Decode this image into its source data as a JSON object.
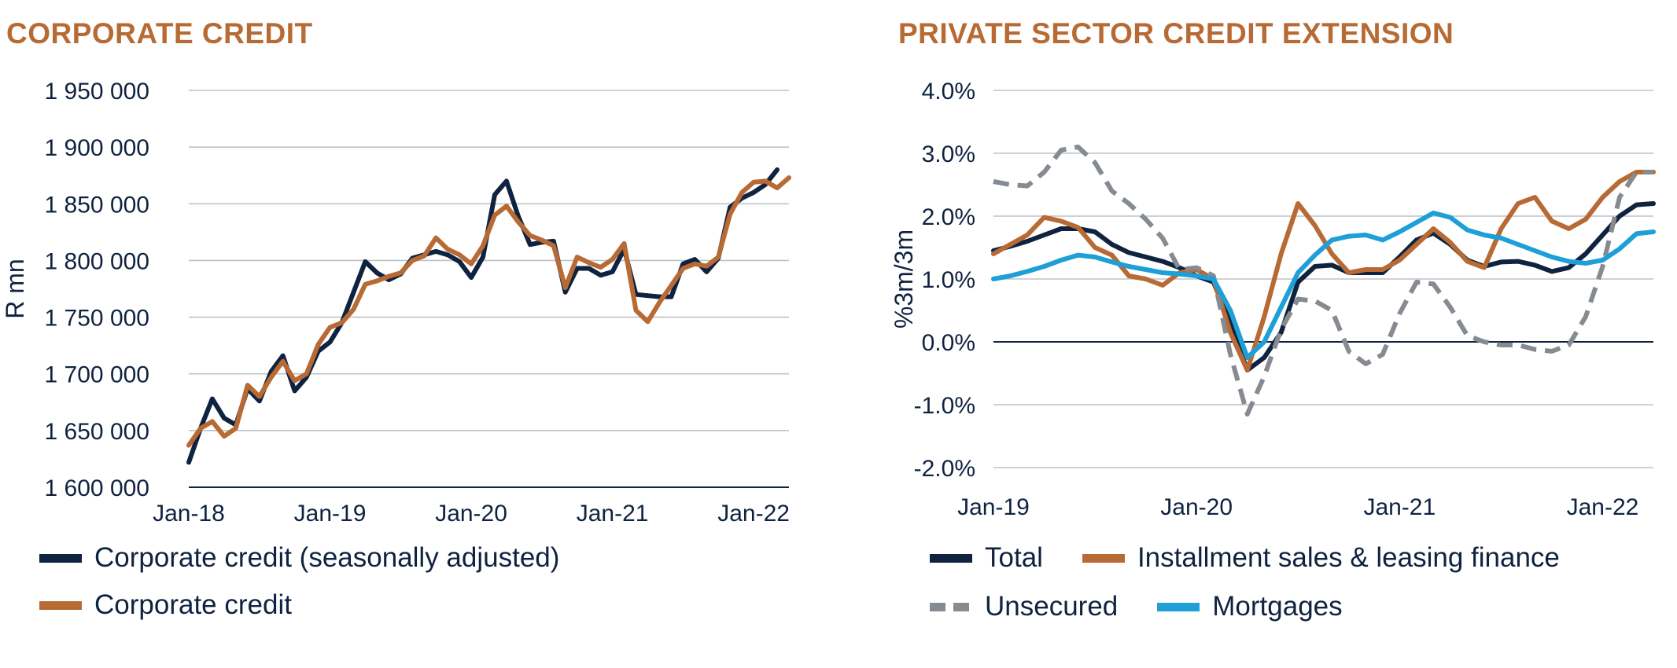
{
  "chart_data": [
    {
      "type": "line",
      "title": "CORPORATE CREDIT",
      "xlabel": "",
      "ylabel": "R mn",
      "ylim": [
        1600000,
        1950000
      ],
      "yticks": [
        1600000,
        1650000,
        1700000,
        1750000,
        1800000,
        1850000,
        1900000,
        1950000
      ],
      "ytick_labels": [
        "1 600 000",
        "1 650 000",
        "1 700 000",
        "1 750 000",
        "1 800 000",
        "1 850 000",
        "1 900 000",
        "1 950 000"
      ],
      "xlim": [
        0,
        51
      ],
      "xticks": [
        0,
        12,
        24,
        36,
        48
      ],
      "xtick_labels": [
        "Jan-18",
        "Jan-19",
        "Jan-20",
        "Jan-21",
        "Jan-22"
      ],
      "grid": true,
      "series": [
        {
          "name": "Corporate credit (seasonally adjusted)",
          "color": "#0f2340",
          "x": [
            0,
            1,
            2,
            3,
            4,
            5,
            6,
            7,
            8,
            9,
            10,
            11,
            12,
            13,
            14,
            15,
            16,
            17,
            18,
            19,
            20,
            21,
            22,
            23,
            24,
            25,
            26,
            27,
            28,
            29,
            30,
            31,
            32,
            33,
            34,
            35,
            36,
            37,
            38,
            39,
            40,
            41,
            42,
            43,
            44,
            45,
            46,
            47,
            48,
            49,
            50
          ],
          "values": [
            1622000,
            1652000,
            1678000,
            1661000,
            1655000,
            1687000,
            1676000,
            1702000,
            1716000,
            1685000,
            1697000,
            1720000,
            1728000,
            1745000,
            1772000,
            1799000,
            1789000,
            1783000,
            1788000,
            1802000,
            1805000,
            1808000,
            1805000,
            1799000,
            1785000,
            1803000,
            1858000,
            1870000,
            1839000,
            1814000,
            1816000,
            1817000,
            1772000,
            1793000,
            1793000,
            1787000,
            1790000,
            1810000,
            1770000,
            1769000,
            1768000,
            1768000,
            1797000,
            1801000,
            1790000,
            1802000,
            1847000,
            1855000,
            1860000,
            1867000,
            1880000
          ]
        },
        {
          "name": "Corporate credit",
          "color": "#b86a34",
          "x": [
            0,
            1,
            2,
            3,
            4,
            5,
            6,
            7,
            8,
            9,
            10,
            11,
            12,
            13,
            14,
            15,
            16,
            17,
            18,
            19,
            20,
            21,
            22,
            23,
            24,
            25,
            26,
            27,
            28,
            29,
            30,
            31,
            32,
            33,
            34,
            35,
            36,
            37,
            38,
            39,
            40,
            41,
            42,
            43,
            44,
            45,
            46,
            47,
            48,
            49,
            50,
            51
          ],
          "values": [
            1637000,
            1652000,
            1658000,
            1645000,
            1652000,
            1690000,
            1680000,
            1697000,
            1711000,
            1694000,
            1700000,
            1726000,
            1741000,
            1745000,
            1757000,
            1779000,
            1782000,
            1786000,
            1789000,
            1800000,
            1804000,
            1820000,
            1810000,
            1805000,
            1797000,
            1813000,
            1840000,
            1848000,
            1834000,
            1822000,
            1818000,
            1813000,
            1776000,
            1803000,
            1798000,
            1794000,
            1801000,
            1815000,
            1756000,
            1746000,
            1763000,
            1778000,
            1793000,
            1797000,
            1795000,
            1803000,
            1841000,
            1860000,
            1869000,
            1870000,
            1864000,
            1873000
          ]
        }
      ],
      "legend": "bottom"
    },
    {
      "type": "line",
      "title": "PRIVATE SECTOR CREDIT EXTENSION",
      "xlabel": "",
      "ylabel": "%3m/3m",
      "ylim": [
        -2.0,
        4.0
      ],
      "yticks": [
        -2.0,
        -1.0,
        0.0,
        1.0,
        2.0,
        3.0,
        4.0
      ],
      "ytick_labels": [
        "-2.0%",
        "-1.0%",
        "0.0%",
        "1.0%",
        "2.0%",
        "3.0%",
        "4.0%"
      ],
      "xlim": [
        0,
        39
      ],
      "xticks": [
        0,
        12,
        24,
        36
      ],
      "xtick_labels": [
        "Jan-19",
        "Jan-20",
        "Jan-21",
        "Jan-22"
      ],
      "grid": true,
      "series": [
        {
          "name": "Total",
          "color": "#0f2340",
          "x": [
            0,
            1,
            2,
            3,
            4,
            5,
            6,
            7,
            8,
            9,
            10,
            11,
            12,
            13,
            14,
            15,
            16,
            17,
            18,
            19,
            20,
            21,
            22,
            23,
            24,
            25,
            26,
            27,
            28,
            29,
            30,
            31,
            32,
            33,
            34,
            35,
            36,
            37,
            38,
            39
          ],
          "values": [
            1.45,
            1.52,
            1.6,
            1.7,
            1.8,
            1.8,
            1.75,
            1.55,
            1.42,
            1.35,
            1.28,
            1.18,
            1.05,
            0.95,
            0.3,
            -0.45,
            -0.25,
            0.15,
            0.95,
            1.2,
            1.22,
            1.1,
            1.1,
            1.1,
            1.35,
            1.62,
            1.73,
            1.55,
            1.3,
            1.2,
            1.27,
            1.28,
            1.22,
            1.12,
            1.18,
            1.4,
            1.7,
            2.0,
            2.18,
            2.2
          ]
        },
        {
          "name": "Installment sales & leasing finance",
          "color": "#b86a34",
          "x": [
            0,
            1,
            2,
            3,
            4,
            5,
            6,
            7,
            8,
            9,
            10,
            11,
            12,
            13,
            14,
            15,
            16,
            17,
            18,
            19,
            20,
            21,
            22,
            23,
            24,
            25,
            26,
            27,
            28,
            29,
            30,
            31,
            32,
            33,
            34,
            35,
            36,
            37,
            38,
            39
          ],
          "values": [
            1.4,
            1.55,
            1.7,
            1.98,
            1.92,
            1.82,
            1.5,
            1.38,
            1.05,
            1.0,
            0.9,
            1.1,
            1.15,
            1.0,
            0.15,
            -0.45,
            0.4,
            1.4,
            2.2,
            1.85,
            1.4,
            1.1,
            1.15,
            1.15,
            1.3,
            1.55,
            1.8,
            1.58,
            1.28,
            1.18,
            1.8,
            2.2,
            2.3,
            1.92,
            1.8,
            1.95,
            2.3,
            2.55,
            2.7,
            2.7
          ]
        },
        {
          "name": "Unsecured",
          "color": "#858b91",
          "x": [
            0,
            1,
            2,
            3,
            4,
            5,
            6,
            7,
            8,
            9,
            10,
            11,
            12,
            13,
            14,
            15,
            16,
            17,
            18,
            19,
            20,
            21,
            22,
            23,
            24,
            25,
            26,
            27,
            28,
            29,
            30,
            31,
            32,
            33,
            34,
            35,
            36,
            37,
            38,
            39
          ],
          "values": [
            2.55,
            2.5,
            2.48,
            2.7,
            3.05,
            3.1,
            2.85,
            2.4,
            2.2,
            1.95,
            1.65,
            1.15,
            1.18,
            1.05,
            -0.2,
            -1.15,
            -0.55,
            0.2,
            0.68,
            0.65,
            0.5,
            -0.15,
            -0.35,
            -0.2,
            0.45,
            0.95,
            0.92,
            0.55,
            0.1,
            0.0,
            -0.05,
            -0.05,
            -0.12,
            -0.15,
            -0.05,
            0.4,
            1.2,
            2.3,
            2.7,
            2.7
          ]
        },
        {
          "name": "Mortgages",
          "color": "#1f9fd8",
          "x": [
            0,
            1,
            2,
            3,
            4,
            5,
            6,
            7,
            8,
            9,
            10,
            11,
            12,
            13,
            14,
            15,
            16,
            17,
            18,
            19,
            20,
            21,
            22,
            23,
            24,
            25,
            26,
            27,
            28,
            29,
            30,
            31,
            32,
            33,
            34,
            35,
            36,
            37,
            38,
            39
          ],
          "values": [
            1.0,
            1.05,
            1.12,
            1.2,
            1.3,
            1.38,
            1.35,
            1.27,
            1.2,
            1.15,
            1.1,
            1.08,
            1.05,
            1.0,
            0.5,
            -0.25,
            0.0,
            0.55,
            1.1,
            1.38,
            1.62,
            1.68,
            1.7,
            1.62,
            1.75,
            1.9,
            2.05,
            1.98,
            1.78,
            1.7,
            1.65,
            1.55,
            1.45,
            1.35,
            1.28,
            1.25,
            1.3,
            1.48,
            1.72,
            1.75
          ]
        }
      ],
      "legend": "bottom"
    }
  ]
}
